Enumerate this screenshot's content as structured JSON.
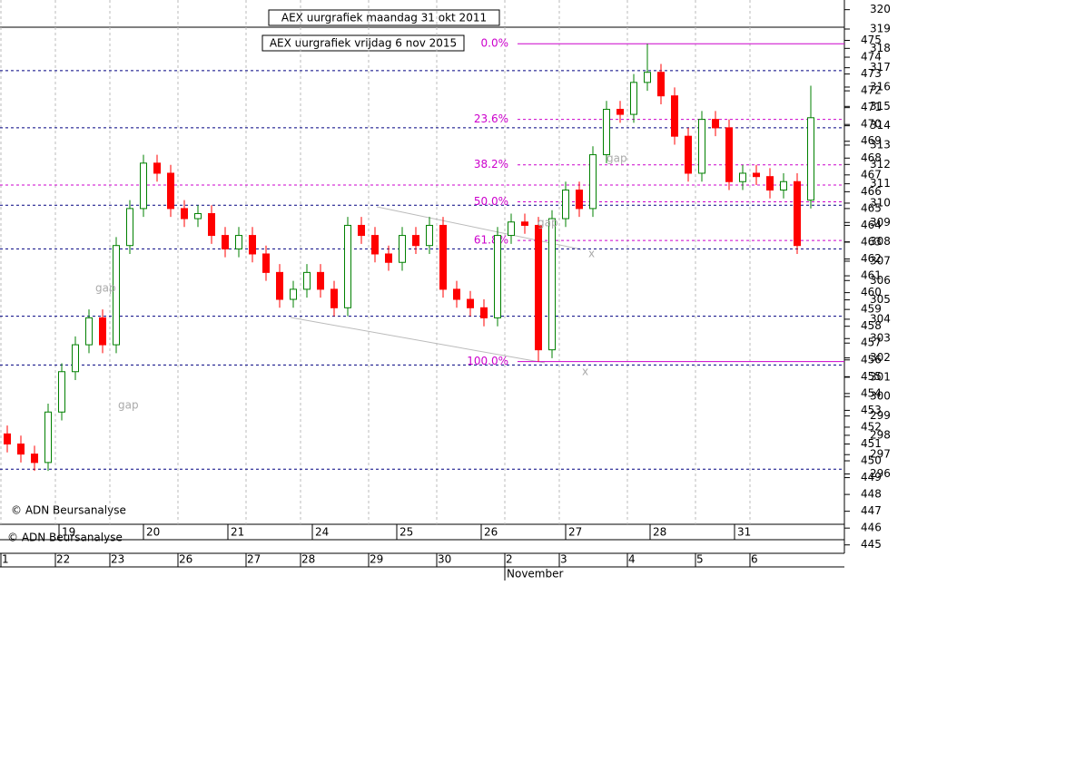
{
  "chart_data": [
    {
      "type": "candlestick",
      "title": "AEX uurgrafiek maandag 31 okt 2011",
      "footer": "© ADN Beursanalyse",
      "ylim": [
        293.4,
        320.5
      ],
      "yticks": [
        296,
        297,
        298,
        299,
        300,
        301,
        302,
        303,
        304,
        305,
        306,
        307,
        308,
        309,
        310,
        311,
        312,
        313,
        314,
        315,
        316,
        317,
        318,
        319,
        320
      ],
      "categories": [
        "19",
        "20",
        "21",
        "24",
        "25",
        "26",
        "27",
        "28",
        "31"
      ]
    },
    {
      "type": "candlestick",
      "title": "AEX uurgrafiek vrijdag 6 nov 2015",
      "footer": "© ADN Beursanalyse",
      "ylim": [
        444.5,
        477.4
      ],
      "yticks": [
        445,
        446,
        447,
        448,
        449,
        450,
        451,
        452,
        453,
        454,
        455,
        456,
        457,
        458,
        459,
        460,
        461,
        462,
        463,
        464,
        465,
        466,
        467,
        468,
        469,
        470,
        471,
        472,
        473,
        474,
        475
      ],
      "categories": [
        "1",
        null,
        null,
        null,
        "22",
        null,
        null,
        null,
        "23",
        null,
        null,
        null,
        null,
        "26",
        null,
        null,
        null,
        null,
        "27",
        null,
        null,
        null,
        "28",
        null,
        null,
        null,
        null,
        "29",
        null,
        null,
        null,
        null,
        "30",
        null,
        null,
        null,
        null,
        "2",
        null,
        null,
        null,
        "3",
        null,
        null,
        null,
        null,
        "4",
        null,
        null,
        null,
        null,
        "5",
        null,
        null,
        null,
        "6",
        null,
        null,
        null,
        null
      ],
      "x_group_label": "November",
      "up_color": "#008000",
      "down_color": "#ff0000",
      "open": [
        451.6,
        451.0,
        450.4,
        449.9,
        452.9,
        455.3,
        456.9,
        458.5,
        456.9,
        462.8,
        465.0,
        467.7,
        467.1,
        465.0,
        464.4,
        464.7,
        463.4,
        462.6,
        463.4,
        462.3,
        461.2,
        459.6,
        460.2,
        461.2,
        460.2,
        459.1,
        464.0,
        463.4,
        462.3,
        461.8,
        463.4,
        462.8,
        464.0,
        460.2,
        459.6,
        459.1,
        458.5,
        463.4,
        464.2,
        464.0,
        456.6,
        464.4,
        466.1,
        465.0,
        468.2,
        470.9,
        470.6,
        472.5,
        473.1,
        471.7,
        469.3,
        467.1,
        470.3,
        469.8,
        466.6,
        467.1,
        466.9,
        466.1,
        466.6,
        465.5
      ],
      "high": [
        452.1,
        451.5,
        450.9,
        453.4,
        455.8,
        457.4,
        459.0,
        459.0,
        463.3,
        465.5,
        468.2,
        468.2,
        467.6,
        465.5,
        465.2,
        465.2,
        463.9,
        463.9,
        463.9,
        462.8,
        461.7,
        460.7,
        461.7,
        461.7,
        460.7,
        464.5,
        464.5,
        463.9,
        462.8,
        463.9,
        463.9,
        464.5,
        464.5,
        460.7,
        460.1,
        459.6,
        463.9,
        464.7,
        464.7,
        464.5,
        464.9,
        466.6,
        466.6,
        468.7,
        471.4,
        471.4,
        473.0,
        474.8,
        473.6,
        472.2,
        469.8,
        470.8,
        470.8,
        470.3,
        467.6,
        467.6,
        467.4,
        467.1,
        467.1,
        472.3
      ],
      "low": [
        450.5,
        449.9,
        449.4,
        449.4,
        452.4,
        454.8,
        456.4,
        456.4,
        456.4,
        462.3,
        464.5,
        466.6,
        464.5,
        463.9,
        463.9,
        462.9,
        462.1,
        462.1,
        461.8,
        460.7,
        459.1,
        459.1,
        459.7,
        459.7,
        458.6,
        458.6,
        462.9,
        461.8,
        461.3,
        461.3,
        462.3,
        462.3,
        459.7,
        459.1,
        458.6,
        458.0,
        458.0,
        462.9,
        463.5,
        455.9,
        456.1,
        463.9,
        464.5,
        464.5,
        467.7,
        470.1,
        470.1,
        472.0,
        471.2,
        468.8,
        466.6,
        466.6,
        469.3,
        466.1,
        466.1,
        466.4,
        465.6,
        465.6,
        462.3,
        465.0
      ],
      "close": [
        451.0,
        450.4,
        449.9,
        452.9,
        455.3,
        456.9,
        458.5,
        456.9,
        462.8,
        465.0,
        467.7,
        467.1,
        465.0,
        464.4,
        464.7,
        463.4,
        462.6,
        463.4,
        462.3,
        461.2,
        459.6,
        460.2,
        461.2,
        460.2,
        459.1,
        464.0,
        463.4,
        462.3,
        461.8,
        463.4,
        462.8,
        464.0,
        460.2,
        459.6,
        459.1,
        458.5,
        463.4,
        464.2,
        464.0,
        456.6,
        464.4,
        466.1,
        465.0,
        468.2,
        470.9,
        470.6,
        472.5,
        473.1,
        471.7,
        469.3,
        467.1,
        470.3,
        469.8,
        466.6,
        467.1,
        466.9,
        466.1,
        466.6,
        462.8,
        470.4
      ],
      "levels": [
        473.2,
        469.8,
        465.2,
        462.6,
        458.6,
        455.7,
        449.5
      ],
      "level_color": "#000080",
      "fib_color": "#cc00cc",
      "extra_fib_lines": [
        466.4
      ],
      "fib_levels": [
        {
          "value": 474.8,
          "label": "0.0%"
        },
        {
          "value": 470.3,
          "label": "23.6%"
        },
        {
          "value": 467.6,
          "label": "38.2%"
        },
        {
          "value": 465.4,
          "label": "50.0%"
        },
        {
          "value": 463.1,
          "label": "61.8%"
        },
        {
          "value": 455.9,
          "label": "100.0%"
        }
      ],
      "annotations": [
        "gap",
        "gap",
        "gap",
        "gap",
        "x",
        "x"
      ]
    }
  ]
}
